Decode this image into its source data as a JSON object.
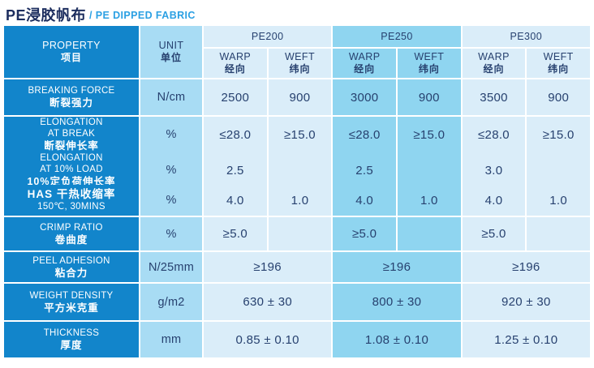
{
  "page_title": {
    "cn": "PE浸胶帆布",
    "en": "/ PE DIPPED FABRIC"
  },
  "colors": {
    "property_bg": "#1285cb",
    "unit_bg": "#a8dcf4",
    "light_cell_bg": "#daedf9",
    "highlight_cell_bg": "#8fd5f0",
    "text_navy": "#27416f",
    "title_navy": "#1c2d5e",
    "title_blue": "#2ba0e3"
  },
  "header": {
    "property": {
      "en": "PROPERTY",
      "cn": "项目"
    },
    "unit": {
      "en": "UNIT",
      "cn": "单位"
    },
    "groups": [
      {
        "label": "PE200"
      },
      {
        "label": "PE250"
      },
      {
        "label": "PE300"
      }
    ],
    "warp": {
      "en": "WARP",
      "cn": "经向"
    },
    "weft": {
      "en": "WEFT",
      "cn": "纬向"
    }
  },
  "rows": [
    {
      "p1": "BREAKING FORCE",
      "p2": "断裂强力",
      "unit": "N/cm",
      "v": {
        "g1w": "2500",
        "g1f": "900",
        "g2w": "3000",
        "g2f": "900",
        "g3w": "3500",
        "g3f": "900"
      }
    },
    {
      "p1": "ELONGATION",
      "p2": "AT BREAK",
      "p3": "断裂伸长率",
      "unit": "%",
      "v": {
        "g1w": "≤28.0",
        "g1f": "≥15.0",
        "g2w": "≤28.0",
        "g2f": "≥15.0",
        "g3w": "≤28.0",
        "g3f": "≥15.0"
      }
    },
    {
      "p1": "ELONGATION",
      "p2": "AT 10% LOAD",
      "p3": "10%定负荷伸长率",
      "unit": "%",
      "v": {
        "g1w": "2.5",
        "g1f": "",
        "g2w": "2.5",
        "g2f": "",
        "g3w": "3.0",
        "g3f": ""
      }
    },
    {
      "p1": "HAS  干热收缩率",
      "p2": "150℃, 30MINS",
      "unit": "%",
      "v": {
        "g1w": "4.0",
        "g1f": "1.0",
        "g2w": "4.0",
        "g2f": "1.0",
        "g3w": "4.0",
        "g3f": "1.0"
      }
    },
    {
      "p1": "CRIMP RATIO",
      "p2": "卷曲度",
      "unit": "%",
      "v": {
        "g1w": "≥5.0",
        "g1f": "",
        "g2w": "≥5.0",
        "g2f": "",
        "g3w": "≥5.0",
        "g3f": ""
      }
    },
    {
      "p1": "PEEL ADHESION",
      "p2": "粘合力",
      "unit": "N/25mm",
      "v": {
        "g1": "≥196",
        "g2": "≥196",
        "g3": "≥196"
      }
    },
    {
      "p1": "WEIGHT DENSITY",
      "p2": "平方米克重",
      "unit": "g/m2",
      "v": {
        "g1": "630 ± 30",
        "g2": "800 ± 30",
        "g3": "920 ± 30"
      }
    },
    {
      "p1": "THICKNESS",
      "p2": "厚度",
      "unit": "mm",
      "v": {
        "g1": "0.85 ± 0.10",
        "g2": "1.08 ± 0.10",
        "g3": "1.25 ± 0.10"
      }
    }
  ]
}
